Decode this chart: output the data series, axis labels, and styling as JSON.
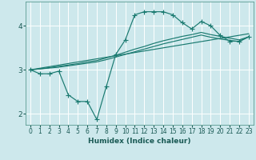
{
  "xlabel": "Humidex (Indice chaleur)",
  "background_color": "#cde8ec",
  "grid_color": "#b0d4d8",
  "line_color": "#1a7a70",
  "xlim": [
    -0.5,
    23.5
  ],
  "ylim": [
    1.75,
    4.55
  ],
  "yticks": [
    2,
    3,
    4
  ],
  "xticks": [
    0,
    1,
    2,
    3,
    4,
    5,
    6,
    7,
    8,
    9,
    10,
    11,
    12,
    13,
    14,
    15,
    16,
    17,
    18,
    19,
    20,
    21,
    22,
    23
  ],
  "line_spiky": {
    "x": [
      0,
      1,
      2,
      3,
      4,
      5,
      6,
      7,
      8,
      9,
      10,
      11,
      12,
      13,
      14,
      15,
      16,
      17,
      18,
      19,
      20,
      21,
      22,
      23
    ],
    "y": [
      3.0,
      2.91,
      2.91,
      2.97,
      2.43,
      2.28,
      2.28,
      1.87,
      2.62,
      3.35,
      3.68,
      4.25,
      4.32,
      4.32,
      4.32,
      4.25,
      4.07,
      3.93,
      4.1,
      4.0,
      3.78,
      3.65,
      3.65,
      3.75
    ]
  },
  "line_upper": {
    "x": [
      0,
      23
    ],
    "y": [
      3.0,
      3.82
    ]
  },
  "line_mid1": {
    "x": [
      0,
      1,
      2,
      3,
      4,
      5,
      6,
      7,
      8,
      9,
      10,
      11,
      12,
      13,
      14,
      15,
      16,
      17,
      18,
      19,
      20,
      21,
      22,
      23
    ],
    "y": [
      3.0,
      3.02,
      3.05,
      3.08,
      3.11,
      3.14,
      3.18,
      3.21,
      3.27,
      3.33,
      3.4,
      3.47,
      3.53,
      3.6,
      3.66,
      3.71,
      3.76,
      3.8,
      3.85,
      3.8,
      3.76,
      3.72,
      3.68,
      3.75
    ]
  },
  "line_mid2": {
    "x": [
      0,
      1,
      2,
      3,
      4,
      5,
      6,
      7,
      8,
      9,
      10,
      11,
      12,
      13,
      14,
      15,
      16,
      17,
      18,
      19,
      20,
      21,
      22,
      23
    ],
    "y": [
      3.0,
      3.02,
      3.04,
      3.06,
      3.09,
      3.12,
      3.15,
      3.18,
      3.23,
      3.29,
      3.35,
      3.41,
      3.47,
      3.53,
      3.59,
      3.64,
      3.69,
      3.74,
      3.79,
      3.74,
      3.7,
      3.67,
      3.64,
      3.75
    ]
  }
}
